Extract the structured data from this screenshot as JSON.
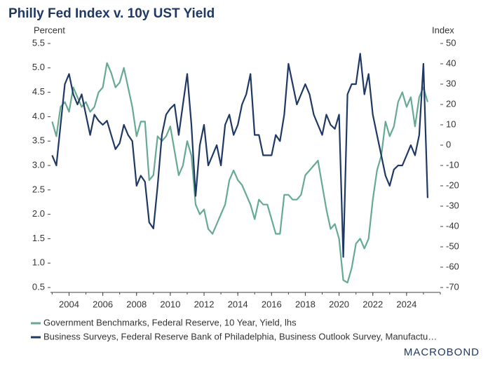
{
  "chart_data": {
    "type": "line",
    "title": "Philly Fed Index v. 10y UST Yield",
    "y_label": "Percent",
    "y2_label": "Index",
    "logo": "MACROBOND",
    "x": [
      2003,
      2003.25,
      2003.5,
      2003.75,
      2004,
      2004.25,
      2004.5,
      2004.75,
      2005,
      2005.25,
      2005.5,
      2005.75,
      2006,
      2006.25,
      2006.5,
      2006.75,
      2007,
      2007.25,
      2007.5,
      2007.75,
      2008,
      2008.25,
      2008.5,
      2008.75,
      2009,
      2009.25,
      2009.5,
      2009.75,
      2010,
      2010.25,
      2010.5,
      2010.75,
      2011,
      2011.25,
      2011.5,
      2011.75,
      2012,
      2012.25,
      2012.5,
      2012.75,
      2013,
      2013.25,
      2013.5,
      2013.75,
      2014,
      2014.25,
      2014.5,
      2014.75,
      2015,
      2015.25,
      2015.5,
      2015.75,
      2016,
      2016.25,
      2016.5,
      2016.75,
      2017,
      2017.25,
      2017.5,
      2017.75,
      2018,
      2018.25,
      2018.5,
      2018.75,
      2019,
      2019.25,
      2019.5,
      2019.75,
      2020,
      2020.25,
      2020.5,
      2020.75,
      2021,
      2021.25,
      2021.5,
      2021.75,
      2022,
      2022.25,
      2022.5,
      2022.75,
      2023,
      2023.25,
      2023.5,
      2023.75,
      2024,
      2024.25,
      2024.5,
      2024.75,
      2025,
      2025.25
    ],
    "series": [
      {
        "name": "Government Benchmarks, Federal Reserve, 10 Year, Yield, lhs",
        "color": "#65aa91",
        "values": [
          3.9,
          3.6,
          4.2,
          4.3,
          4.1,
          4.6,
          4.4,
          4.2,
          4.3,
          4.1,
          4.2,
          4.5,
          4.6,
          5.1,
          4.9,
          4.6,
          4.7,
          5.0,
          4.6,
          4.2,
          3.6,
          3.9,
          3.9,
          2.7,
          2.8,
          3.6,
          3.5,
          3.6,
          3.8,
          3.3,
          2.8,
          3.0,
          3.5,
          3.2,
          2.2,
          2.0,
          2.1,
          1.7,
          1.6,
          1.8,
          2.0,
          2.2,
          2.7,
          2.9,
          2.7,
          2.6,
          2.4,
          2.2,
          1.9,
          2.3,
          2.2,
          2.2,
          1.9,
          1.6,
          1.6,
          2.4,
          2.4,
          2.3,
          2.3,
          2.4,
          2.8,
          2.9,
          3.0,
          3.1,
          2.6,
          2.1,
          1.7,
          1.8,
          1.5,
          0.65,
          0.6,
          0.9,
          1.4,
          1.5,
          1.3,
          1.5,
          2.3,
          2.9,
          3.2,
          3.9,
          3.6,
          3.8,
          4.3,
          4.5,
          4.2,
          4.4,
          3.8,
          4.4,
          4.6,
          4.3
        ]
      },
      {
        "name": "Business Surveys, Federal Reserve Bank of Philadelphia, Business Outlook Survey, Manufactu…",
        "color": "#1f3864",
        "axis": "y2",
        "values": [
          -5,
          -10,
          10,
          30,
          35,
          25,
          20,
          25,
          15,
          5,
          15,
          12,
          10,
          12,
          5,
          -2,
          1,
          10,
          5,
          2,
          -20,
          -15,
          -18,
          -38,
          -41,
          -20,
          5,
          15,
          18,
          20,
          5,
          20,
          35,
          10,
          -25,
          0,
          10,
          -10,
          -5,
          0,
          -10,
          10,
          15,
          5,
          10,
          20,
          25,
          35,
          5,
          5,
          -5,
          -5,
          -5,
          5,
          2,
          15,
          40,
          30,
          20,
          25,
          30,
          25,
          15,
          10,
          5,
          15,
          10,
          8,
          15,
          -55,
          25,
          30,
          30,
          45,
          25,
          35,
          15,
          5,
          -5,
          -15,
          -20,
          -12,
          -10,
          -10,
          -5,
          0,
          -5,
          5,
          40,
          -26
        ]
      }
    ],
    "xlim": [
      2002.9,
      2026
    ],
    "xticks": [
      2004,
      2006,
      2008,
      2010,
      2012,
      2014,
      2016,
      2018,
      2020,
      2022,
      2024
    ],
    "ylim": [
      0.4,
      5.5
    ],
    "yticks": [
      0.5,
      {
        "value": 1,
        "label": "1.0"
      },
      1.5,
      {
        "value": 2,
        "label": "2.0"
      },
      2.5,
      {
        "value": 3,
        "label": "3.0"
      },
      3.5,
      {
        "value": 4,
        "label": "4.0"
      },
      4.5,
      {
        "value": 5,
        "label": "5.0"
      },
      5.5
    ],
    "y2lim": [
      -72.4,
      50
    ],
    "y2ticks": [
      -70,
      -60,
      -50,
      -40,
      -30,
      -20,
      -10,
      0,
      10,
      20,
      30,
      40,
      50
    ],
    "grid": false,
    "legend": "bottom"
  }
}
